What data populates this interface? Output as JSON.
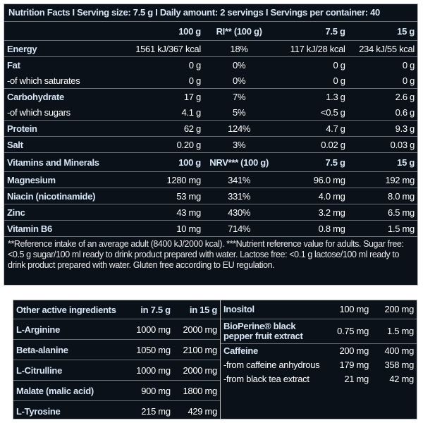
{
  "header": {
    "title": "Nutrition Facts I Serving size: 7.5 g I Daily amount: 2 servings I Servings per container: 40"
  },
  "nutrients": {
    "columns": [
      "100 g",
      "RI** (100 g)",
      "7.5 g",
      "15 g"
    ],
    "groups": [
      [
        [
          "Energy",
          "1561 kJ/367 kcal",
          "18%",
          "117 kJ/28 kcal",
          "234 kJ/55 kcal"
        ]
      ],
      [
        [
          "Fat",
          "0 g",
          "0%",
          "0 g",
          "0 g"
        ],
        [
          "-of which saturates",
          "0 g",
          "0%",
          "0 g",
          "0 g"
        ]
      ],
      [
        [
          "Carbohydrate",
          "17 g",
          "7%",
          "1.3 g",
          "2.6 g"
        ],
        [
          "-of which sugars",
          "4.1 g",
          "5%",
          "<0.5 g",
          "0.6 g"
        ]
      ],
      [
        [
          "Protein",
          "62 g",
          "124%",
          "4.7 g",
          "9.3 g"
        ]
      ],
      [
        [
          "Salt",
          "0.20 g",
          "3%",
          "0.02 g",
          "0.03 g"
        ]
      ]
    ]
  },
  "vitamins": {
    "columns": [
      "Vitamins and Minerals",
      "100 g",
      "NRV*** (100 g)",
      "7.5 g",
      "15 g"
    ],
    "rows": [
      [
        "Magnesium",
        "1280 mg",
        "341%",
        "96.0 mg",
        "192 mg"
      ],
      [
        "Niacin (nicotinamide)",
        "53 mg",
        "331%",
        "4.0 mg",
        "8.0 mg"
      ],
      [
        "Zinc",
        "43 mg",
        "430%",
        "3.2 mg",
        "6.5 mg"
      ],
      [
        "Vitamin B6",
        "10 mg",
        "714%",
        "0.8 mg",
        "1.5 mg"
      ]
    ]
  },
  "footnote": "**Reference intake of an average adult (8400 kJ/2000 kcal). ***Nutrient reference value for adults. Sugar free: <0.5 g sugar/100 ml ready to drink product prepared with water. Lactose free: <0.1 g lactose/100 ml ready to drink product prepared with water. Gluten free according to EU regulation.",
  "other": {
    "columns": [
      "Other active ingredients",
      "in 7.5 g",
      "in 15 g"
    ],
    "rows": [
      [
        "L-Arginine",
        "1000 mg",
        "2000 mg"
      ],
      [
        "Beta-alanine",
        "1050 mg",
        "2100 mg"
      ],
      [
        "L-Citrulline",
        "1000 mg",
        "2000 mg"
      ],
      [
        "Malate (malic acid)",
        "900 mg",
        "1800 mg"
      ],
      [
        "L-Tyrosine",
        "215 mg",
        "429 mg"
      ]
    ]
  },
  "other_right": {
    "groups": [
      [
        [
          "Inositol",
          "100 mg",
          "200 mg"
        ]
      ],
      [
        [
          "BioPerine® black pepper fruit extract",
          "0.75 mg",
          "1.5 mg"
        ]
      ],
      [
        [
          "Caffeine",
          "200 mg",
          "400 mg"
        ],
        [
          "-from caffeine anhydrous",
          "179 mg",
          "358 mg"
        ],
        [
          "-from black tea extract",
          "21 mg",
          "42 mg"
        ]
      ]
    ]
  }
}
